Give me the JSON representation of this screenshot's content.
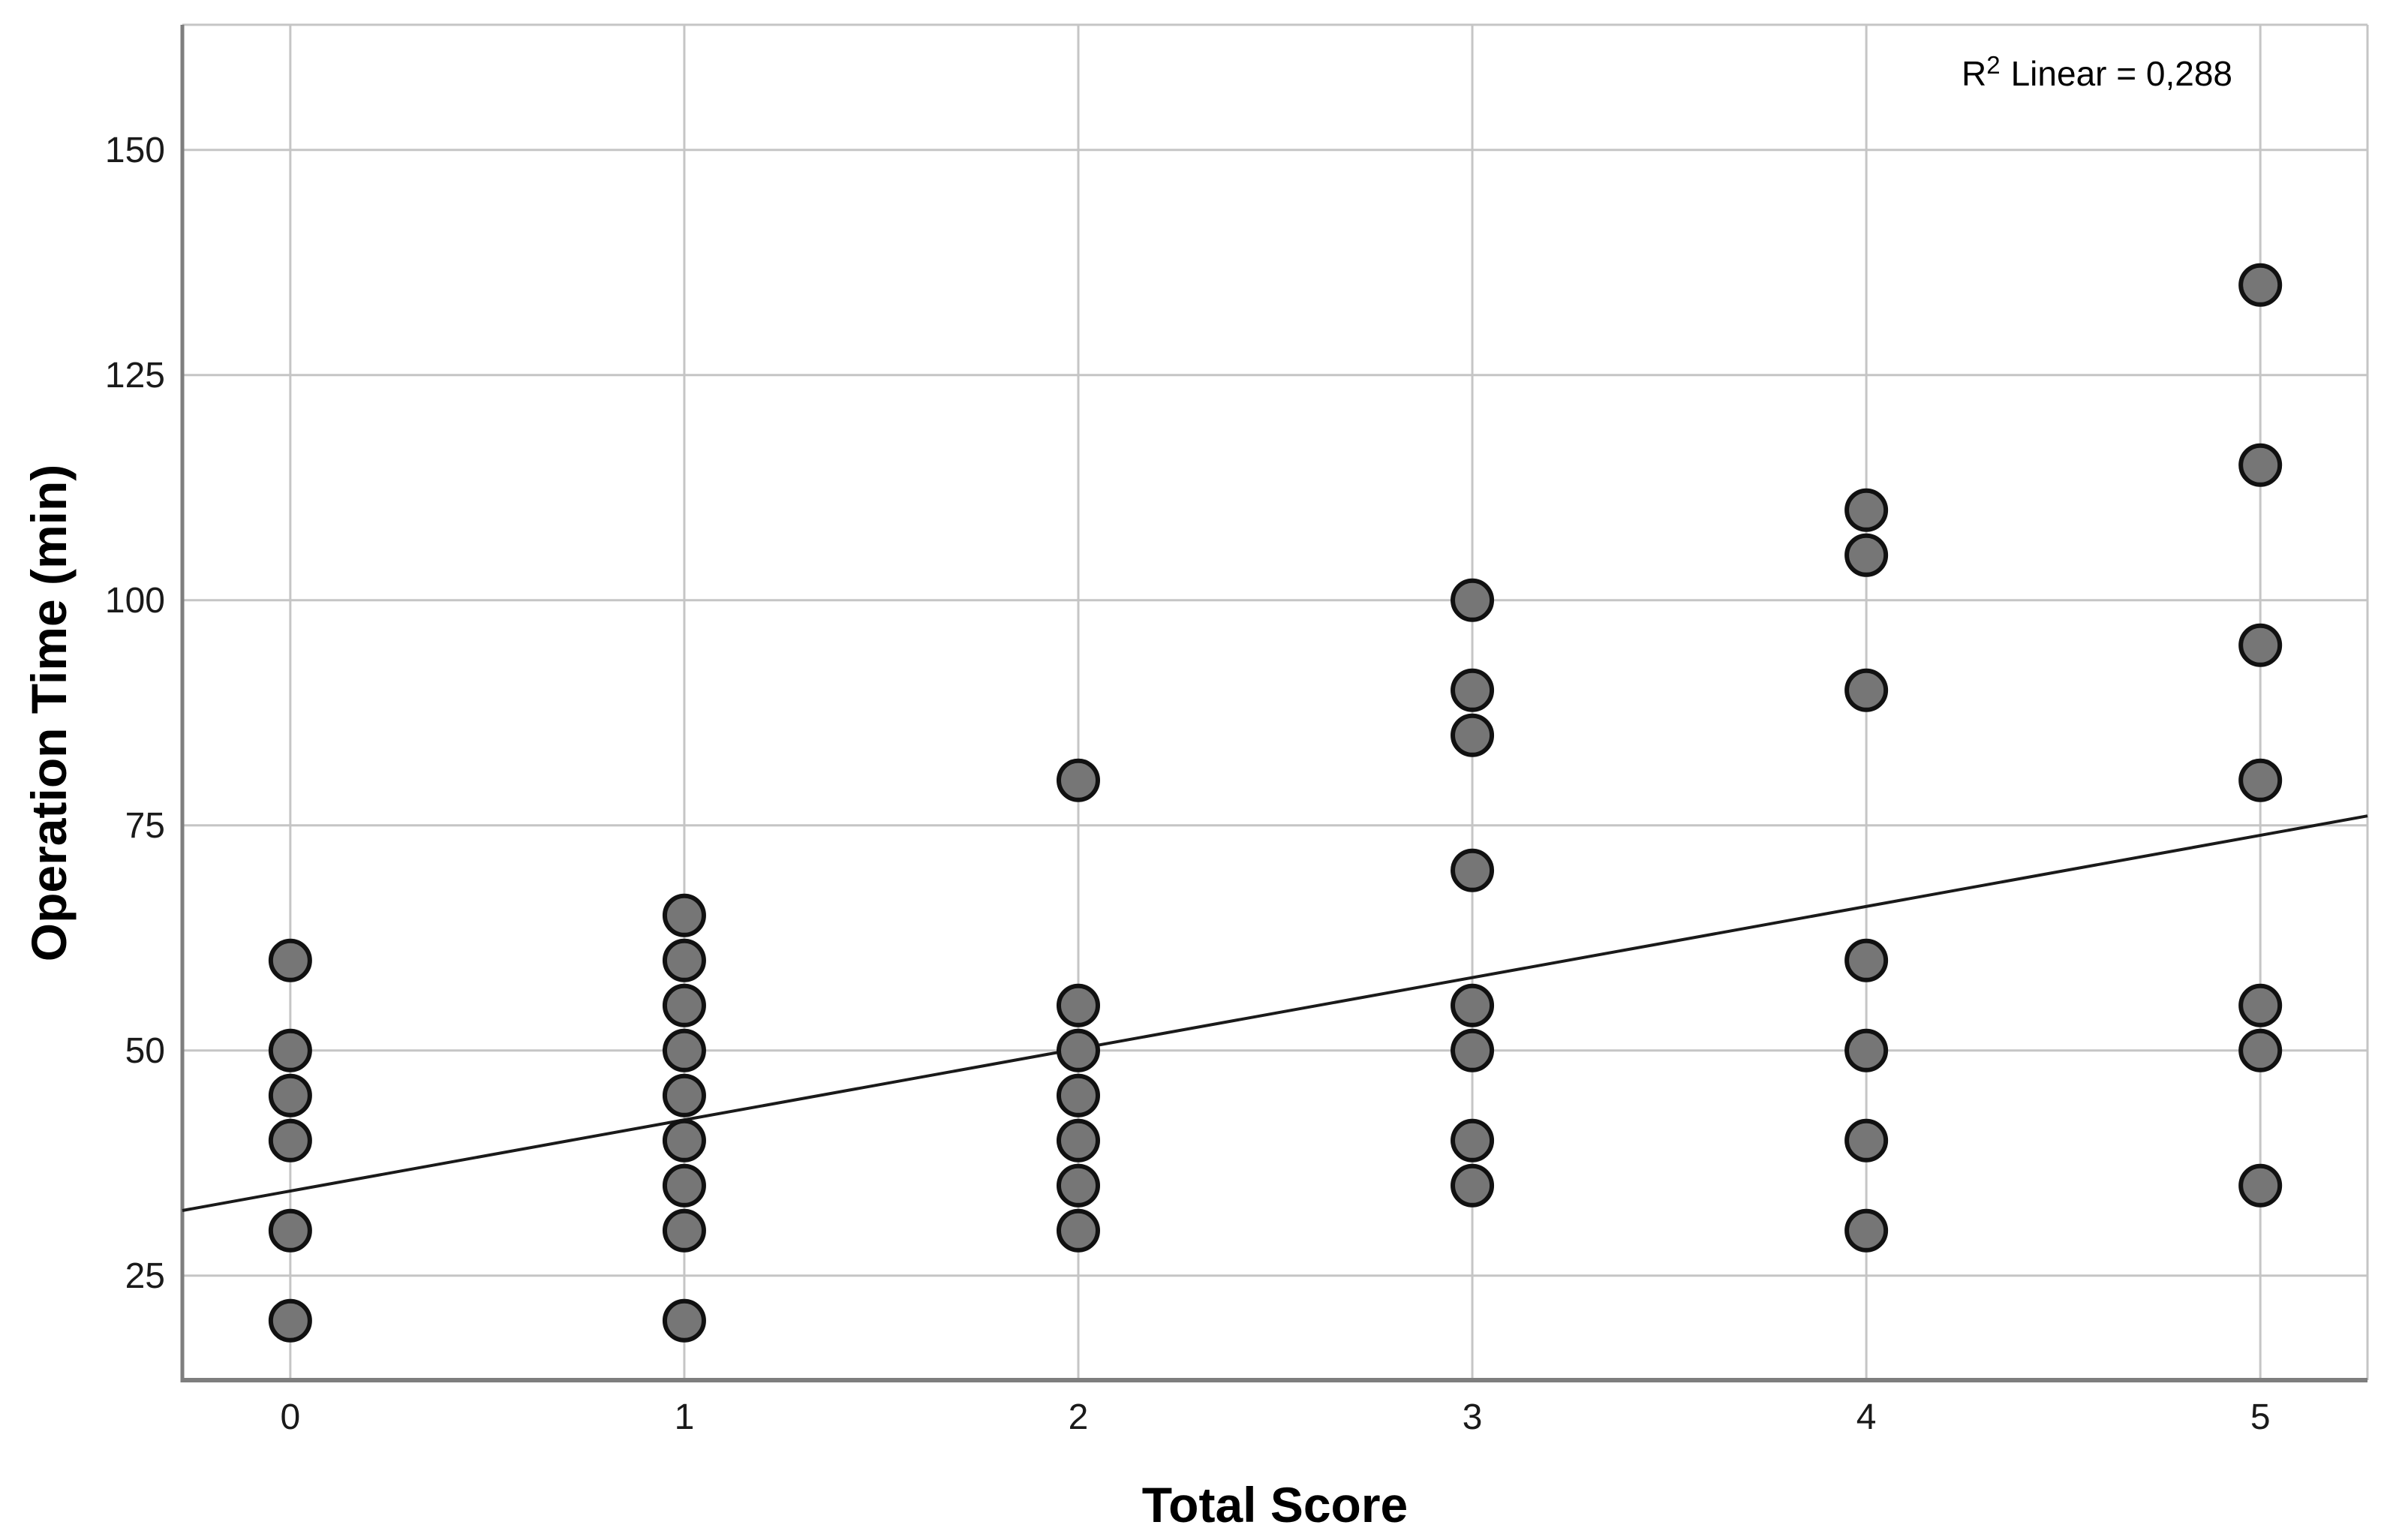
{
  "chart_data": {
    "type": "scatter",
    "title": "",
    "xlabel": "Total Score",
    "ylabel": "Operation Time (min)",
    "annotation": {
      "base": "R",
      "sup": "2",
      "rest": "Linear = 0,288"
    },
    "x_ticks": [
      0,
      1,
      2,
      3,
      4,
      5
    ],
    "y_ticks": [
      25,
      50,
      75,
      100,
      125,
      150
    ],
    "xlim": [
      -0.274,
      5.272
    ],
    "ylim": [
      13.4,
      163.9
    ],
    "grid": true,
    "legend": "none",
    "points": [
      {
        "x": 0,
        "ys": [
          60,
          50,
          45,
          40,
          30,
          20
        ]
      },
      {
        "x": 1,
        "ys": [
          65,
          60,
          55,
          50,
          45,
          40,
          35,
          30,
          20
        ]
      },
      {
        "x": 2,
        "ys": [
          80,
          55,
          50,
          45,
          40,
          35,
          30
        ]
      },
      {
        "x": 3,
        "ys": [
          100,
          90,
          85,
          70,
          55,
          50,
          40,
          35
        ]
      },
      {
        "x": 4,
        "ys": [
          110,
          105,
          90,
          60,
          50,
          40,
          30
        ]
      },
      {
        "x": 5,
        "ys": [
          135,
          115,
          95,
          80,
          55,
          50,
          35
        ]
      }
    ],
    "fit_line": {
      "slope": 7.9,
      "intercept": 34.4,
      "r2": "0,288"
    },
    "colors": {
      "point_fill": "#767676",
      "point_stroke": "#111111",
      "fit_line": "#1a1a1a",
      "gridline": "#c5c5c5",
      "axis_line": "#7e7e7e",
      "frame_line": "#c5c5c5",
      "background": "#ffffff",
      "text": "#1a1a1a"
    }
  }
}
